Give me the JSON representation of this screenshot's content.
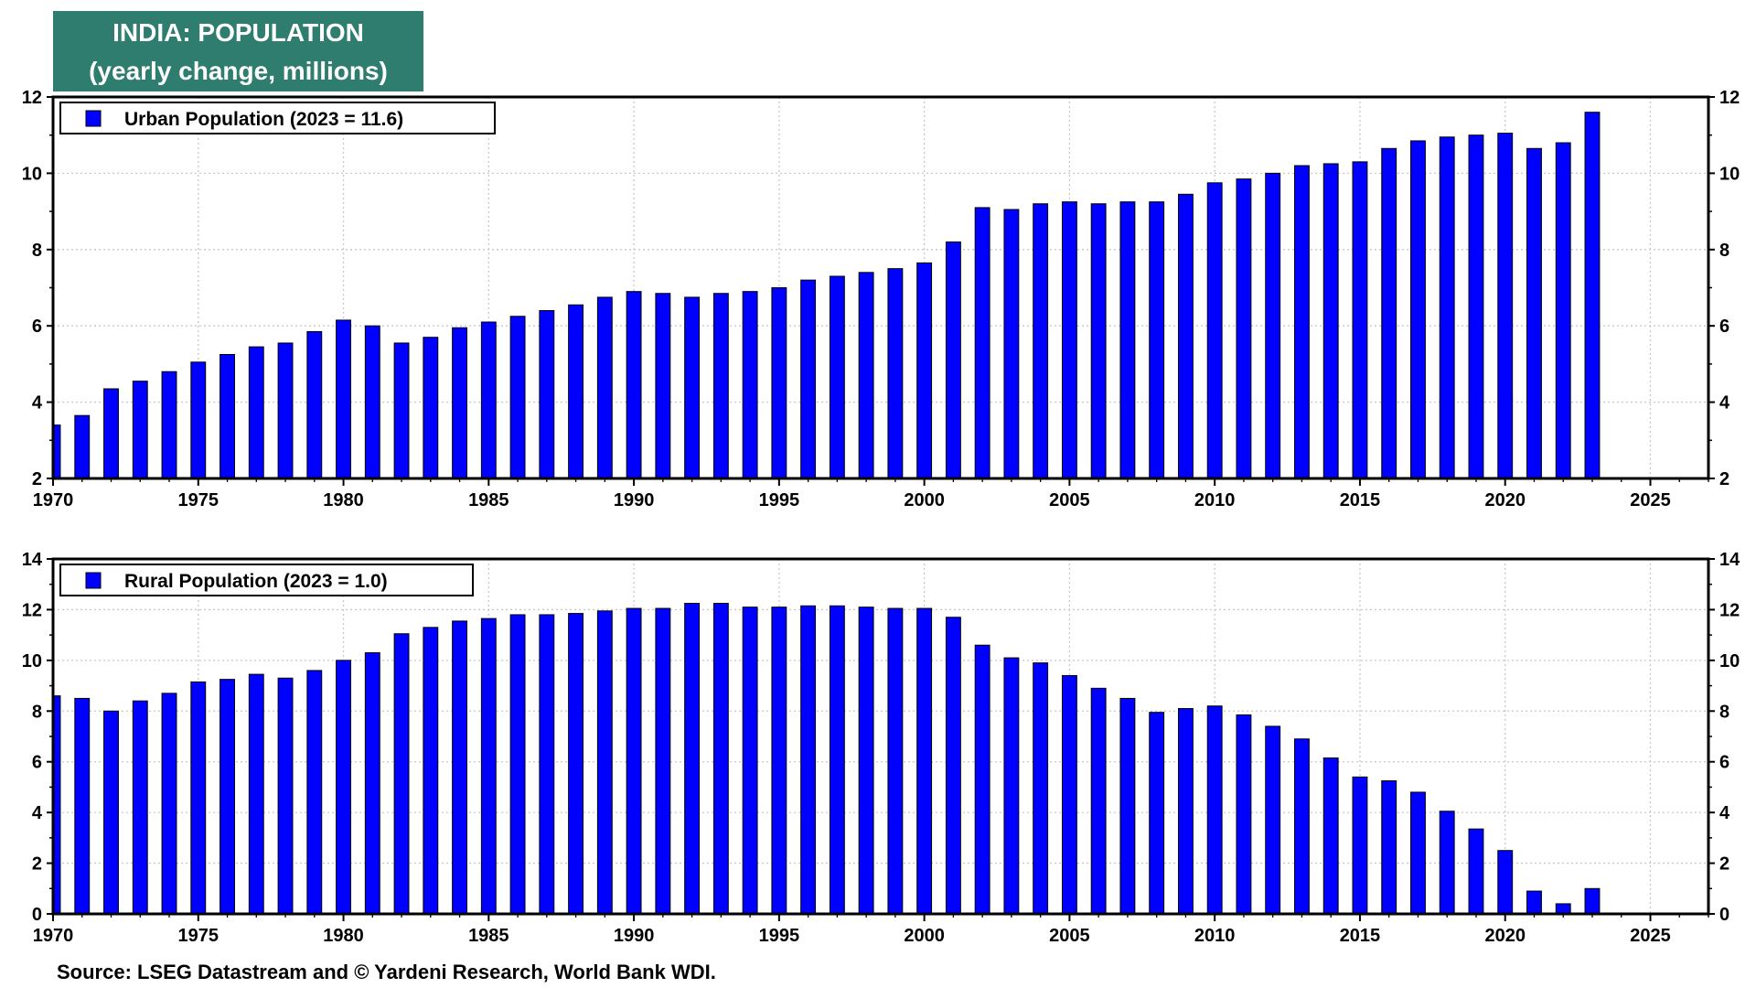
{
  "title": {
    "line1": "INDIA: POPULATION",
    "line2": "(yearly change, millions)"
  },
  "source": "Source: LSEG Datastream and © Yardeni Research, World Bank WDI.",
  "colors": {
    "bar": "#0000ff",
    "title_bg": "#2e7d6e",
    "grid": "#c8c8c8"
  },
  "chart_data": [
    {
      "type": "bar",
      "legend": "Urban Population (2023 = 11.6)",
      "legend_placement": "top-left",
      "xlim": [
        1970,
        2027
      ],
      "ylim": [
        2,
        12
      ],
      "yticks": [
        2,
        4,
        6,
        8,
        10,
        12
      ],
      "xticks": [
        1970,
        1975,
        1980,
        1985,
        1990,
        1995,
        2000,
        2005,
        2010,
        2015,
        2020,
        2025
      ],
      "grid": true,
      "x": [
        1970,
        1971,
        1972,
        1973,
        1974,
        1975,
        1976,
        1977,
        1978,
        1979,
        1980,
        1981,
        1982,
        1983,
        1984,
        1985,
        1986,
        1987,
        1988,
        1989,
        1990,
        1991,
        1992,
        1993,
        1994,
        1995,
        1996,
        1997,
        1998,
        1999,
        2000,
        2001,
        2002,
        2003,
        2004,
        2005,
        2006,
        2007,
        2008,
        2009,
        2010,
        2011,
        2012,
        2013,
        2014,
        2015,
        2016,
        2017,
        2018,
        2019,
        2020,
        2021,
        2022,
        2023
      ],
      "values": [
        3.4,
        3.65,
        4.35,
        4.55,
        4.8,
        5.05,
        5.25,
        5.45,
        5.55,
        5.85,
        6.15,
        6.0,
        5.55,
        5.7,
        5.95,
        6.1,
        6.25,
        6.4,
        6.55,
        6.75,
        6.9,
        6.85,
        6.75,
        6.85,
        6.9,
        7.0,
        7.2,
        7.3,
        7.4,
        7.5,
        7.65,
        8.2,
        9.1,
        9.05,
        9.2,
        9.25,
        9.2,
        9.25,
        9.25,
        9.45,
        9.75,
        9.85,
        10.0,
        10.2,
        10.25,
        10.3,
        10.65,
        10.85,
        10.95,
        11.0,
        11.05,
        10.65,
        10.8,
        11.6
      ]
    },
    {
      "type": "bar",
      "legend": "Rural Population (2023 = 1.0)",
      "legend_placement": "top-left",
      "xlim": [
        1970,
        2027
      ],
      "ylim": [
        0,
        14
      ],
      "yticks": [
        0,
        2,
        4,
        6,
        8,
        10,
        12,
        14
      ],
      "xticks": [
        1970,
        1975,
        1980,
        1985,
        1990,
        1995,
        2000,
        2005,
        2010,
        2015,
        2020,
        2025
      ],
      "grid": true,
      "x": [
        1970,
        1971,
        1972,
        1973,
        1974,
        1975,
        1976,
        1977,
        1978,
        1979,
        1980,
        1981,
        1982,
        1983,
        1984,
        1985,
        1986,
        1987,
        1988,
        1989,
        1990,
        1991,
        1992,
        1993,
        1994,
        1995,
        1996,
        1997,
        1998,
        1999,
        2000,
        2001,
        2002,
        2003,
        2004,
        2005,
        2006,
        2007,
        2008,
        2009,
        2010,
        2011,
        2012,
        2013,
        2014,
        2015,
        2016,
        2017,
        2018,
        2019,
        2020,
        2021,
        2022,
        2023
      ],
      "values": [
        8.6,
        8.5,
        8.0,
        8.4,
        8.7,
        9.15,
        9.25,
        9.45,
        9.3,
        9.6,
        10.0,
        10.3,
        11.05,
        11.3,
        11.55,
        11.65,
        11.8,
        11.8,
        11.85,
        11.95,
        12.05,
        12.05,
        12.25,
        12.25,
        12.1,
        12.1,
        12.15,
        12.15,
        12.1,
        12.05,
        12.05,
        11.7,
        10.6,
        10.1,
        9.9,
        9.4,
        8.9,
        8.5,
        7.95,
        8.1,
        8.2,
        7.85,
        7.4,
        6.9,
        6.15,
        5.4,
        5.25,
        4.8,
        4.05,
        3.35,
        2.5,
        0.9,
        0.4,
        1.0
      ]
    }
  ]
}
